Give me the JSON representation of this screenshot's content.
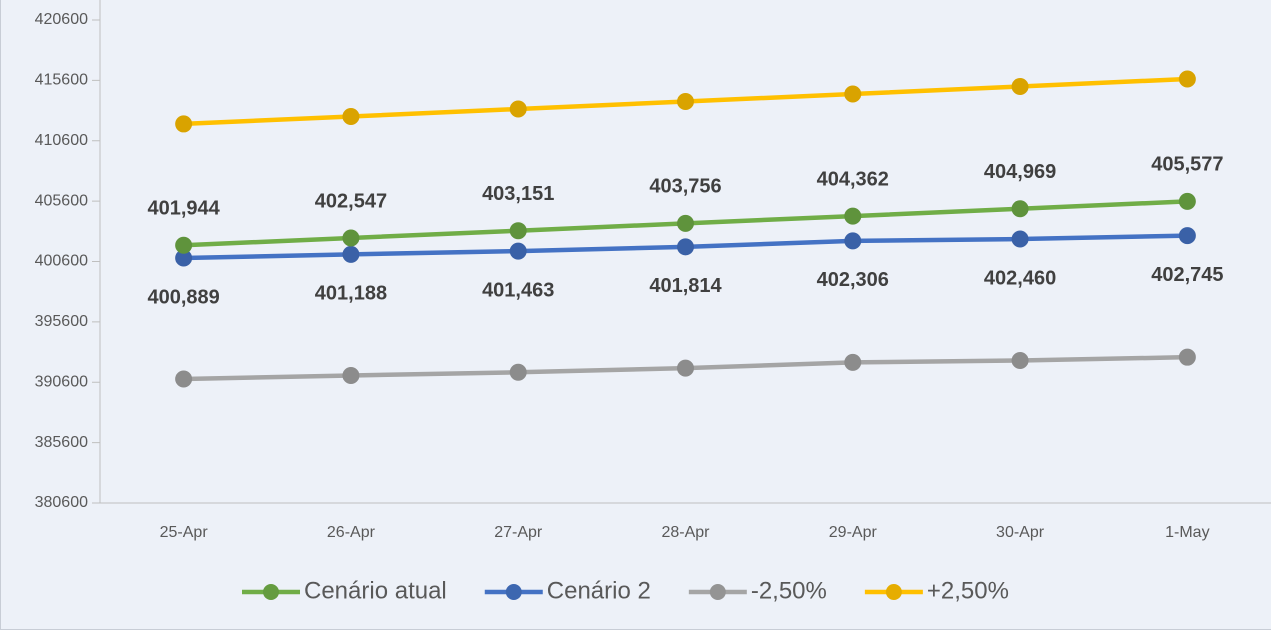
{
  "chart_data": {
    "type": "line",
    "categories": [
      "25-Apr",
      "26-Apr",
      "27-Apr",
      "28-Apr",
      "29-Apr",
      "30-Apr",
      "1-May"
    ],
    "ylim": [
      380600,
      420600
    ],
    "yticks": [
      380600,
      385600,
      390600,
      395600,
      400600,
      405600,
      410600,
      415600,
      420600
    ],
    "grid": false,
    "legend": "bottom",
    "series": [
      {
        "name": "Cenário atual",
        "color": "#70ad47",
        "label_position": "above",
        "values": [
          401944,
          402547,
          403151,
          403756,
          404362,
          404969,
          405577
        ],
        "value_labels": [
          "401,944",
          "402,547",
          "403,151",
          "403,756",
          "404,362",
          "404,969",
          "405,577"
        ]
      },
      {
        "name": "Cenário 2",
        "color": "#4472c4",
        "label_position": "below",
        "values": [
          400889,
          401188,
          401463,
          401814,
          402306,
          402460,
          402745
        ],
        "value_labels": [
          "400,889",
          "401,188",
          "401,463",
          "401,814",
          "402,306",
          "402,460",
          "402,745"
        ]
      },
      {
        "name": "-2,50%",
        "color": "#a5a5a5",
        "values": [
          390867,
          391158,
          391426,
          391769,
          392248,
          392399,
          392676
        ]
      },
      {
        "name": "+2,50%",
        "color": "#ffc000",
        "values": [
          411993,
          412611,
          413230,
          413850,
          414471,
          415093,
          415716
        ]
      }
    ]
  }
}
